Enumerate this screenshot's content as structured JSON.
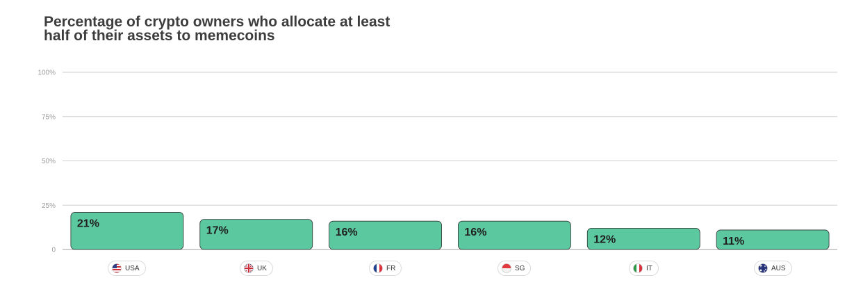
{
  "chart_data": {
    "type": "bar",
    "title_lines": [
      "Percentage of crypto owners who allocate at least",
      "half of their assets to memecoins"
    ],
    "categories": [
      "USA",
      "UK",
      "FR",
      "SG",
      "IT",
      "AUS"
    ],
    "values": [
      21,
      17,
      16,
      16,
      12,
      11
    ],
    "value_labels": [
      "21%",
      "17%",
      "16%",
      "16%",
      "12%",
      "11%"
    ],
    "ylim": [
      0,
      100
    ],
    "yticks": [
      {
        "value": 0,
        "label": "0"
      },
      {
        "value": 25,
        "label": "25%"
      },
      {
        "value": 50,
        "label": "50%"
      },
      {
        "value": 75,
        "label": "75%"
      },
      {
        "value": 100,
        "label": "100%"
      }
    ],
    "grid": true,
    "bar_color": "#5bc89f",
    "category_icons": [
      "us-flag-icon",
      "uk-flag-icon",
      "france-flag-icon",
      "singapore-flag-icon",
      "italy-flag-icon",
      "australia-flag-icon"
    ]
  }
}
